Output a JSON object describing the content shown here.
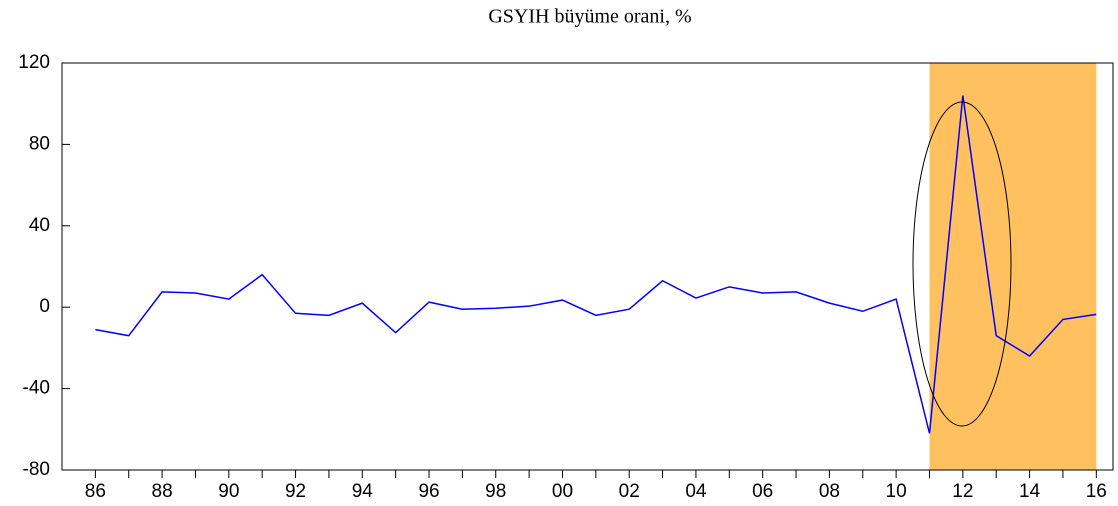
{
  "chart_data": {
    "type": "line",
    "title": "GSYIH büyüme orani, %",
    "x": [
      1986,
      1987,
      1988,
      1989,
      1990,
      1991,
      1992,
      1993,
      1994,
      1995,
      1996,
      1997,
      1998,
      1999,
      2000,
      2001,
      2002,
      2003,
      2004,
      2005,
      2006,
      2007,
      2008,
      2009,
      2010,
      2011,
      2012,
      2013,
      2014,
      2015,
      2016
    ],
    "series": [
      {
        "name": "GSYIH büyüme orani",
        "color": "#0000ff",
        "values": [
          -11,
          -14,
          7.5,
          7,
          4,
          16,
          -3,
          -4,
          2,
          -12.5,
          2.5,
          -1,
          -0.5,
          0.5,
          3.5,
          -4,
          -1,
          13,
          4.5,
          10,
          7,
          7.5,
          2,
          -2,
          4,
          -62,
          104,
          -14,
          -24,
          -6,
          -3.5
        ]
      }
    ],
    "xlim": [
      1985,
      2016.5
    ],
    "xticks": [
      {
        "value": 1986,
        "label": "86"
      },
      {
        "value": 1988,
        "label": "88"
      },
      {
        "value": 1990,
        "label": "90"
      },
      {
        "value": 1992,
        "label": "92"
      },
      {
        "value": 1994,
        "label": "94"
      },
      {
        "value": 1996,
        "label": "96"
      },
      {
        "value": 1998,
        "label": "98"
      },
      {
        "value": 2000,
        "label": "00"
      },
      {
        "value": 2002,
        "label": "02"
      },
      {
        "value": 2004,
        "label": "04"
      },
      {
        "value": 2006,
        "label": "06"
      },
      {
        "value": 2008,
        "label": "08"
      },
      {
        "value": 2010,
        "label": "10"
      },
      {
        "value": 2012,
        "label": "12"
      },
      {
        "value": 2014,
        "label": "14"
      },
      {
        "value": 2016,
        "label": "16"
      }
    ],
    "xminorticks": [
      1987,
      1989,
      1991,
      1993,
      1995,
      1997,
      1999,
      2001,
      2003,
      2005,
      2007,
      2009,
      2011,
      2013,
      2015
    ],
    "ylim": [
      -80,
      120
    ],
    "yticks": [
      -80,
      -40,
      0,
      40,
      80,
      120
    ],
    "shade": {
      "range": [
        2011,
        2016
      ],
      "color": "#ffc060"
    }
  }
}
